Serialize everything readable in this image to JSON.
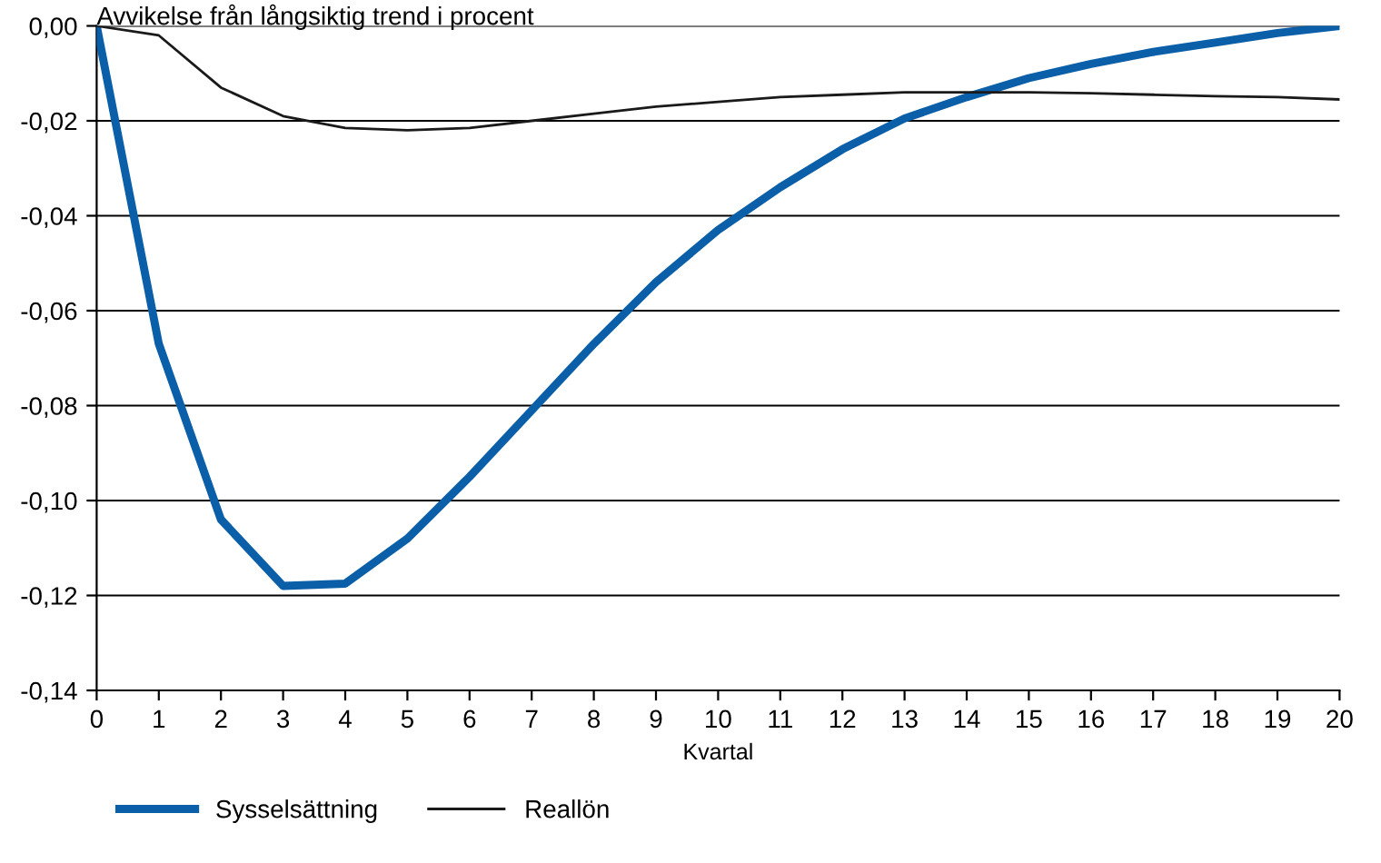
{
  "chart_data": {
    "type": "line",
    "title": "Avvikelse från långsiktig trend i procent",
    "xlabel": "Kvartal",
    "x": [
      0,
      1,
      2,
      3,
      4,
      5,
      6,
      7,
      8,
      9,
      10,
      11,
      12,
      13,
      14,
      15,
      16,
      17,
      18,
      19,
      20
    ],
    "series": [
      {
        "name": "Sysselsättning",
        "color": "#0a5fa8",
        "values": [
          0,
          -0.067,
          -0.104,
          -0.118,
          -0.1175,
          -0.108,
          -0.095,
          -0.081,
          -0.067,
          -0.054,
          -0.043,
          -0.034,
          -0.026,
          -0.0195,
          -0.015,
          -0.011,
          -0.008,
          -0.0055,
          -0.0035,
          -0.0015,
          0
        ]
      },
      {
        "name": "Reallön",
        "color": "#1a1a1a",
        "values": [
          0,
          -0.002,
          -0.013,
          -0.019,
          -0.0215,
          -0.022,
          -0.0215,
          -0.02,
          -0.0185,
          -0.017,
          -0.016,
          -0.015,
          -0.0145,
          -0.014,
          -0.014,
          -0.014,
          -0.0142,
          -0.0145,
          -0.0148,
          -0.015,
          -0.0155
        ]
      }
    ],
    "xlim": [
      0,
      20
    ],
    "xticks": [
      0,
      1,
      2,
      3,
      4,
      5,
      6,
      7,
      8,
      9,
      10,
      11,
      12,
      13,
      14,
      15,
      16,
      17,
      18,
      19,
      20
    ],
    "ylim": [
      -0.14,
      0
    ],
    "yticks": [
      {
        "value": -0.14,
        "label": "-0,14"
      },
      {
        "value": -0.12,
        "label": "-0,12"
      },
      {
        "value": -0.1,
        "label": "-0,10"
      },
      {
        "value": -0.08,
        "label": "-0,08"
      },
      {
        "value": -0.06,
        "label": "-0,06"
      },
      {
        "value": -0.04,
        "label": "-0,04"
      },
      {
        "value": -0.02,
        "label": "-0,02"
      },
      {
        "value": 0,
        "label": "0,00"
      }
    ],
    "grid": "y",
    "legend": "bottom",
    "line_style": "solid",
    "marker": "none"
  }
}
